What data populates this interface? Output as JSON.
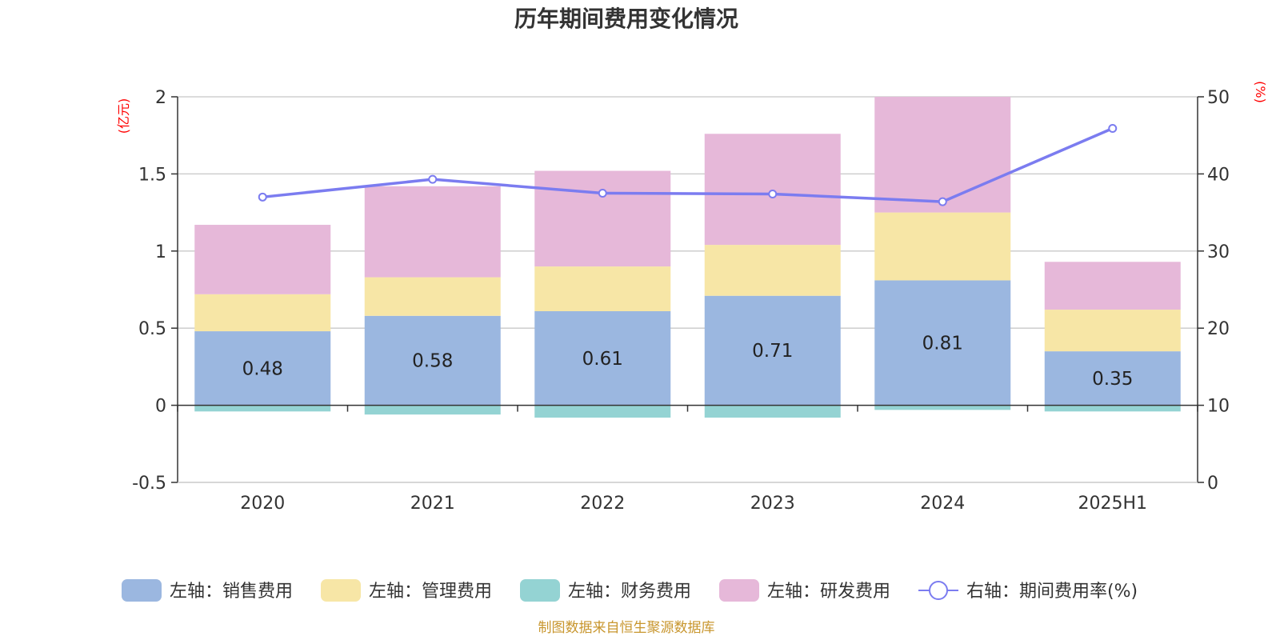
{
  "chart_data": {
    "type": "bar",
    "title": "历年期间费用变化情况",
    "categories": [
      "2020",
      "2021",
      "2022",
      "2023",
      "2024",
      "2025H1"
    ],
    "left_axis": {
      "unit": "(亿元)",
      "ylim": [
        -0.5,
        2
      ],
      "ticks": [
        -0.5,
        0,
        0.5,
        1,
        1.5,
        2
      ],
      "tick_labels": [
        "-0.5",
        "0",
        "0.5",
        "1",
        "1.5",
        "2"
      ]
    },
    "right_axis": {
      "unit": "(%)",
      "ylim": [
        0,
        50
      ],
      "ticks": [
        0,
        10,
        20,
        30,
        40,
        50
      ],
      "tick_labels": [
        "0",
        "10",
        "20",
        "30",
        "40",
        "50"
      ]
    },
    "stacked": true,
    "grid": true,
    "legend_position": "bottom",
    "series": [
      {
        "name": "左轴：销售费用",
        "axis": "left",
        "color": "#9bb7e0",
        "values": [
          0.48,
          0.58,
          0.61,
          0.71,
          0.81,
          0.35
        ],
        "labels": [
          "0.48",
          "0.58",
          "0.61",
          "0.71",
          "0.81",
          "0.35"
        ]
      },
      {
        "name": "左轴：管理费用",
        "axis": "left",
        "color": "#f7e6a6",
        "values": [
          0.24,
          0.25,
          0.29,
          0.33,
          0.44,
          0.27
        ]
      },
      {
        "name": "左轴：财务费用",
        "axis": "left",
        "color": "#94d3d3",
        "values": [
          -0.04,
          -0.06,
          -0.08,
          -0.08,
          -0.03,
          -0.04
        ]
      },
      {
        "name": "左轴：研发费用",
        "axis": "left",
        "color": "#e6b8d9",
        "values": [
          0.45,
          0.59,
          0.62,
          0.72,
          0.75,
          0.31
        ]
      },
      {
        "name": "右轴：期间费用率(%)",
        "axis": "right",
        "type": "line",
        "color": "#7b7cf0",
        "values": [
          37.0,
          39.3,
          37.5,
          37.4,
          36.4,
          45.9
        ]
      }
    ],
    "source": "制图数据来自恒生聚源数据库"
  }
}
